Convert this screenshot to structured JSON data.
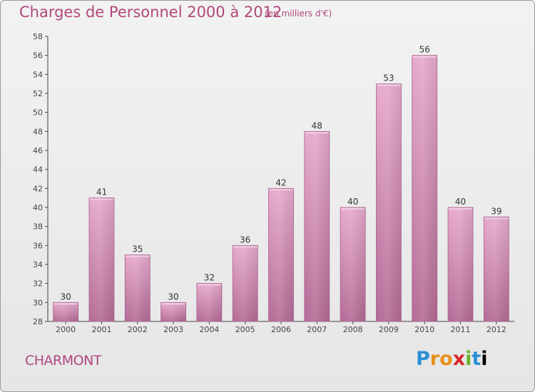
{
  "header": {
    "title": "Charges de Personnel 2000 à 2012",
    "subtitle": "(en milliers d'€)"
  },
  "footer": {
    "city": "CHARMONT",
    "brand": "Proxiti",
    "brand_letters": [
      "P",
      "r",
      "o",
      "x",
      "i",
      "t",
      "i"
    ]
  },
  "colors": {
    "title": "#b0487d",
    "bar_top": "#e6a9cd",
    "bar_bottom": "#b36b95",
    "bar_edge": "#a8628c",
    "axis": "#444444"
  },
  "chart_data": {
    "type": "bar",
    "title": "Charges de Personnel 2000 à 2012",
    "subtitle": "(en milliers d'€)",
    "xlabel": "",
    "ylabel": "",
    "categories": [
      "2000",
      "2001",
      "2002",
      "2003",
      "2004",
      "2005",
      "2006",
      "2007",
      "2008",
      "2009",
      "2010",
      "2011",
      "2012"
    ],
    "values": [
      30,
      41,
      35,
      30,
      32,
      36,
      42,
      48,
      40,
      53,
      56,
      40,
      39
    ],
    "ylim": [
      28,
      58
    ],
    "yticks": [
      28,
      30,
      32,
      34,
      36,
      38,
      40,
      42,
      44,
      46,
      48,
      50,
      52,
      54,
      56,
      58
    ],
    "grid": false,
    "data_labels": true
  }
}
